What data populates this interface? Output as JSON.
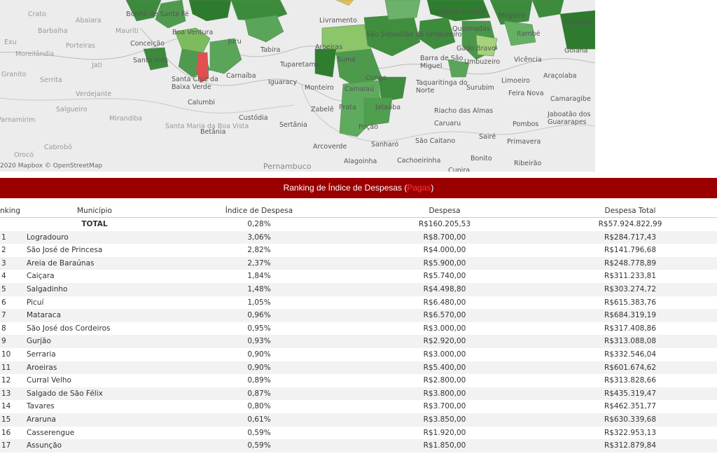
{
  "map": {
    "attribution": "2020 Mapbox  © OpenStreetMap",
    "state_label": "Pernambuco",
    "towns": [
      {
        "name": "Crato",
        "dim": true
      },
      {
        "name": "Abaiara",
        "dim": true
      },
      {
        "name": "Bonito de Santa Fé"
      },
      {
        "name": "Barbalha",
        "dim": true
      },
      {
        "name": "Mauriti",
        "dim": true
      },
      {
        "name": "Boa Ventura"
      },
      {
        "name": "Exu",
        "dim": true
      },
      {
        "name": "Porteiras",
        "dim": true
      },
      {
        "name": "Conceição"
      },
      {
        "name": "Juru"
      },
      {
        "name": "Tabira"
      },
      {
        "name": "Livramento"
      },
      {
        "name": "Moreilândia",
        "dim": true
      },
      {
        "name": "Santa Inês"
      },
      {
        "name": "Jati",
        "dim": true
      },
      {
        "name": "Granito",
        "dim": true
      },
      {
        "name": "Serrita",
        "dim": true
      },
      {
        "name": "Verdejante",
        "dim": true
      },
      {
        "name": "Salgueiro",
        "dim": true
      },
      {
        "name": "Mirandiba",
        "dim": true
      },
      {
        "name": "Carnaíba"
      },
      {
        "name": "Tuparetama"
      },
      {
        "name": "Iguaracy"
      },
      {
        "name": "Monteiro"
      },
      {
        "name": "Sumé"
      },
      {
        "name": "Barra de São Miguel"
      },
      {
        "name": "Taquaritinga do Norte"
      },
      {
        "name": "Umbuzeiro"
      },
      {
        "name": "Surubim"
      },
      {
        "name": "Limoeiro"
      },
      {
        "name": "Feira Nova"
      },
      {
        "name": "Vicência"
      },
      {
        "name": "Araçoiaba"
      },
      {
        "name": "Camaragibe"
      },
      {
        "name": "Jaboatão dos Guararapes"
      },
      {
        "name": "Gado Bravo"
      },
      {
        "name": "Queimadas"
      },
      {
        "name": "Campina Grande"
      },
      {
        "name": "Mogeiro"
      },
      {
        "name": "Itambé"
      },
      {
        "name": "Alhandra"
      },
      {
        "name": "Goiana"
      },
      {
        "name": "Calumbi"
      },
      {
        "name": "Betânia"
      },
      {
        "name": "Custódia"
      },
      {
        "name": "Sertânia"
      },
      {
        "name": "Zabelê"
      },
      {
        "name": "Prata"
      },
      {
        "name": "Poção"
      },
      {
        "name": "Jataúba"
      },
      {
        "name": "Riacho das Almas"
      },
      {
        "name": "Caruaru"
      },
      {
        "name": "Pombos"
      },
      {
        "name": "Santa Maria da Boa Vista",
        "dim": true
      },
      {
        "name": "Arcoverde"
      },
      {
        "name": "Sanharó"
      },
      {
        "name": "São Caitano"
      },
      {
        "name": "Sairé"
      },
      {
        "name": "Primavera"
      },
      {
        "name": "Orocó",
        "dim": true
      },
      {
        "name": "Cabrobó",
        "dim": true
      },
      {
        "name": "Alagoinha"
      },
      {
        "name": "Cachoeirinha"
      },
      {
        "name": "Bonito"
      },
      {
        "name": "Ribeirão"
      },
      {
        "name": "Cupira"
      },
      {
        "name": "Santa Cruz da Baixa Verde"
      },
      {
        "name": "Congo"
      },
      {
        "name": "Camalaú"
      },
      {
        "name": "São Sebastião do Umbuzeiro"
      },
      {
        "name": "Aroeiras"
      },
      {
        "name": "Parnamirim",
        "dim": true
      }
    ]
  },
  "banner": {
    "title_prefix": "Ranking de Índice de Despesas (",
    "highlight": "Pagas",
    "title_suffix": ")"
  },
  "table": {
    "headers": {
      "rank": "nking",
      "municipio": "Município",
      "indice": "Índice de Despesa",
      "despesa": "Despesa",
      "total": "Despesa Total"
    },
    "total_row": {
      "label": "TOTAL",
      "indice": "0,28%",
      "despesa": "R$160.205,53",
      "total": "R$57.924.822,99"
    },
    "rows": [
      {
        "rank": "1",
        "municipio": "Logradouro",
        "indice": "3,06%",
        "despesa": "R$8.700,00",
        "total": "R$284.717,43"
      },
      {
        "rank": "2",
        "municipio": "São José de Princesa",
        "indice": "2,82%",
        "despesa": "R$4.000,00",
        "total": "R$141.796,68"
      },
      {
        "rank": "3",
        "municipio": "Areia de Baraúnas",
        "indice": "2,37%",
        "despesa": "R$5.900,00",
        "total": "R$248.778,89"
      },
      {
        "rank": "4",
        "municipio": "Caiçara",
        "indice": "1,84%",
        "despesa": "R$5.740,00",
        "total": "R$311.233,81"
      },
      {
        "rank": "5",
        "municipio": "Salgadinho",
        "indice": "1,48%",
        "despesa": "R$4.498,80",
        "total": "R$303.274,72"
      },
      {
        "rank": "6",
        "municipio": "Picuí",
        "indice": "1,05%",
        "despesa": "R$6.480,00",
        "total": "R$615.383,76"
      },
      {
        "rank": "7",
        "municipio": "Mataraca",
        "indice": "0,96%",
        "despesa": "R$6.570,00",
        "total": "R$684.319,19"
      },
      {
        "rank": "8",
        "municipio": "São José dos Cordeiros",
        "indice": "0,95%",
        "despesa": "R$3.000,00",
        "total": "R$317.408,86"
      },
      {
        "rank": "9",
        "municipio": "Gurjão",
        "indice": "0,93%",
        "despesa": "R$2.920,00",
        "total": "R$313.088,08"
      },
      {
        "rank": "10",
        "municipio": "Serraria",
        "indice": "0,90%",
        "despesa": "R$3.000,00",
        "total": "R$332.546,04"
      },
      {
        "rank": "11",
        "municipio": "Aroeiras",
        "indice": "0,90%",
        "despesa": "R$5.400,00",
        "total": "R$601.674,62"
      },
      {
        "rank": "12",
        "municipio": "Curral Velho",
        "indice": "0,89%",
        "despesa": "R$2.800,00",
        "total": "R$313.828,66"
      },
      {
        "rank": "13",
        "municipio": "Salgado de São Félix",
        "indice": "0,87%",
        "despesa": "R$3.800,00",
        "total": "R$435.319,47"
      },
      {
        "rank": "14",
        "municipio": "Tavares",
        "indice": "0,80%",
        "despesa": "R$3.700,00",
        "total": "R$462.351,77"
      },
      {
        "rank": "15",
        "municipio": "Araruna",
        "indice": "0,61%",
        "despesa": "R$3.850,00",
        "total": "R$630.339,68"
      },
      {
        "rank": "16",
        "municipio": "Casserengue",
        "indice": "0,59%",
        "despesa": "R$1.920,00",
        "total": "R$322.953,13"
      },
      {
        "rank": "17",
        "municipio": "Assunção",
        "indice": "0,59%",
        "despesa": "R$1.850,00",
        "total": "R$312.879,84"
      }
    ]
  }
}
